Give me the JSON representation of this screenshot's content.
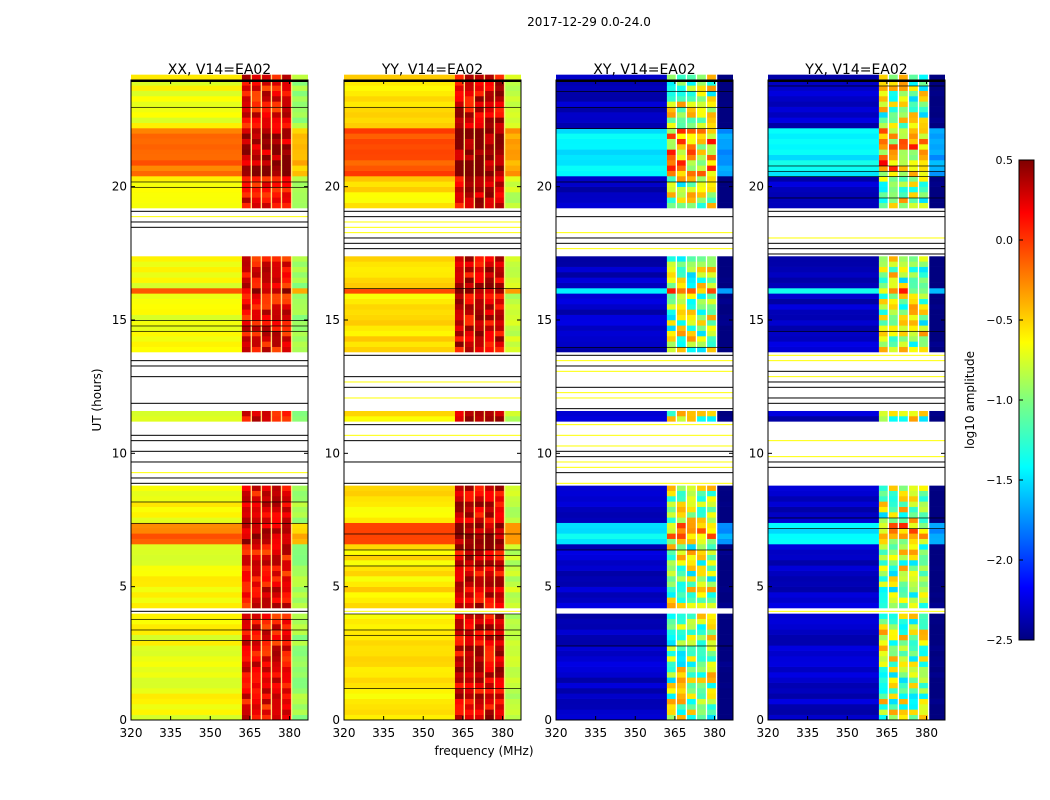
{
  "chart_data": {
    "type": "heatmap",
    "title": "2017-12-29 0.0-24.0",
    "xlabel": "frequency (MHz)",
    "ylabel": "UT (hours)",
    "xlim": [
      320,
      387
    ],
    "ylim": [
      0,
      24
    ],
    "xticks": [
      "320",
      "335",
      "350",
      "365",
      "380"
    ],
    "xtick_values": [
      320,
      335,
      350,
      365,
      380
    ],
    "yticks": [
      "0",
      "5",
      "10",
      "15",
      "20"
    ],
    "ytick_values": [
      0,
      5,
      10,
      15,
      20
    ],
    "panels": [
      {
        "title": "XX, V14=EA02",
        "base": -0.65,
        "rfi": 0.15,
        "rfi_range": [
          362,
          381
        ]
      },
      {
        "title": "YY, V14=EA02",
        "base": -0.55,
        "rfi": 0.25,
        "rfi_range": [
          362,
          381
        ]
      },
      {
        "title": "XY, V14=EA02",
        "base": -2.3,
        "rfi": -0.9,
        "rfi_range": [
          362,
          381
        ]
      },
      {
        "title": "YX, V14=EA02",
        "base": -2.3,
        "rfi": -0.9,
        "rfi_range": [
          362,
          381
        ]
      }
    ],
    "flagged_hours": [
      [
        8.8,
        11.0
      ],
      [
        11.4,
        13.6
      ],
      [
        17.3,
        19.0
      ],
      [
        4.0,
        4.2
      ],
      [
        22.0,
        22.1
      ]
    ],
    "bright_hours": [
      [
        6.6,
        7.4
      ],
      [
        15.8,
        16.1
      ],
      [
        20.3,
        22.0
      ]
    ],
    "colorbar": {
      "label": "log10 amplitude",
      "range": [
        -2.5,
        0.5
      ],
      "ticks": [
        "0.5",
        "0.0",
        "−0.5",
        "−1.0",
        "−1.5",
        "−2.0",
        "−2.5"
      ],
      "tick_values": [
        0.5,
        0.0,
        -0.5,
        -1.0,
        -1.5,
        -2.0,
        -2.5
      ],
      "colormap": "jet"
    }
  }
}
